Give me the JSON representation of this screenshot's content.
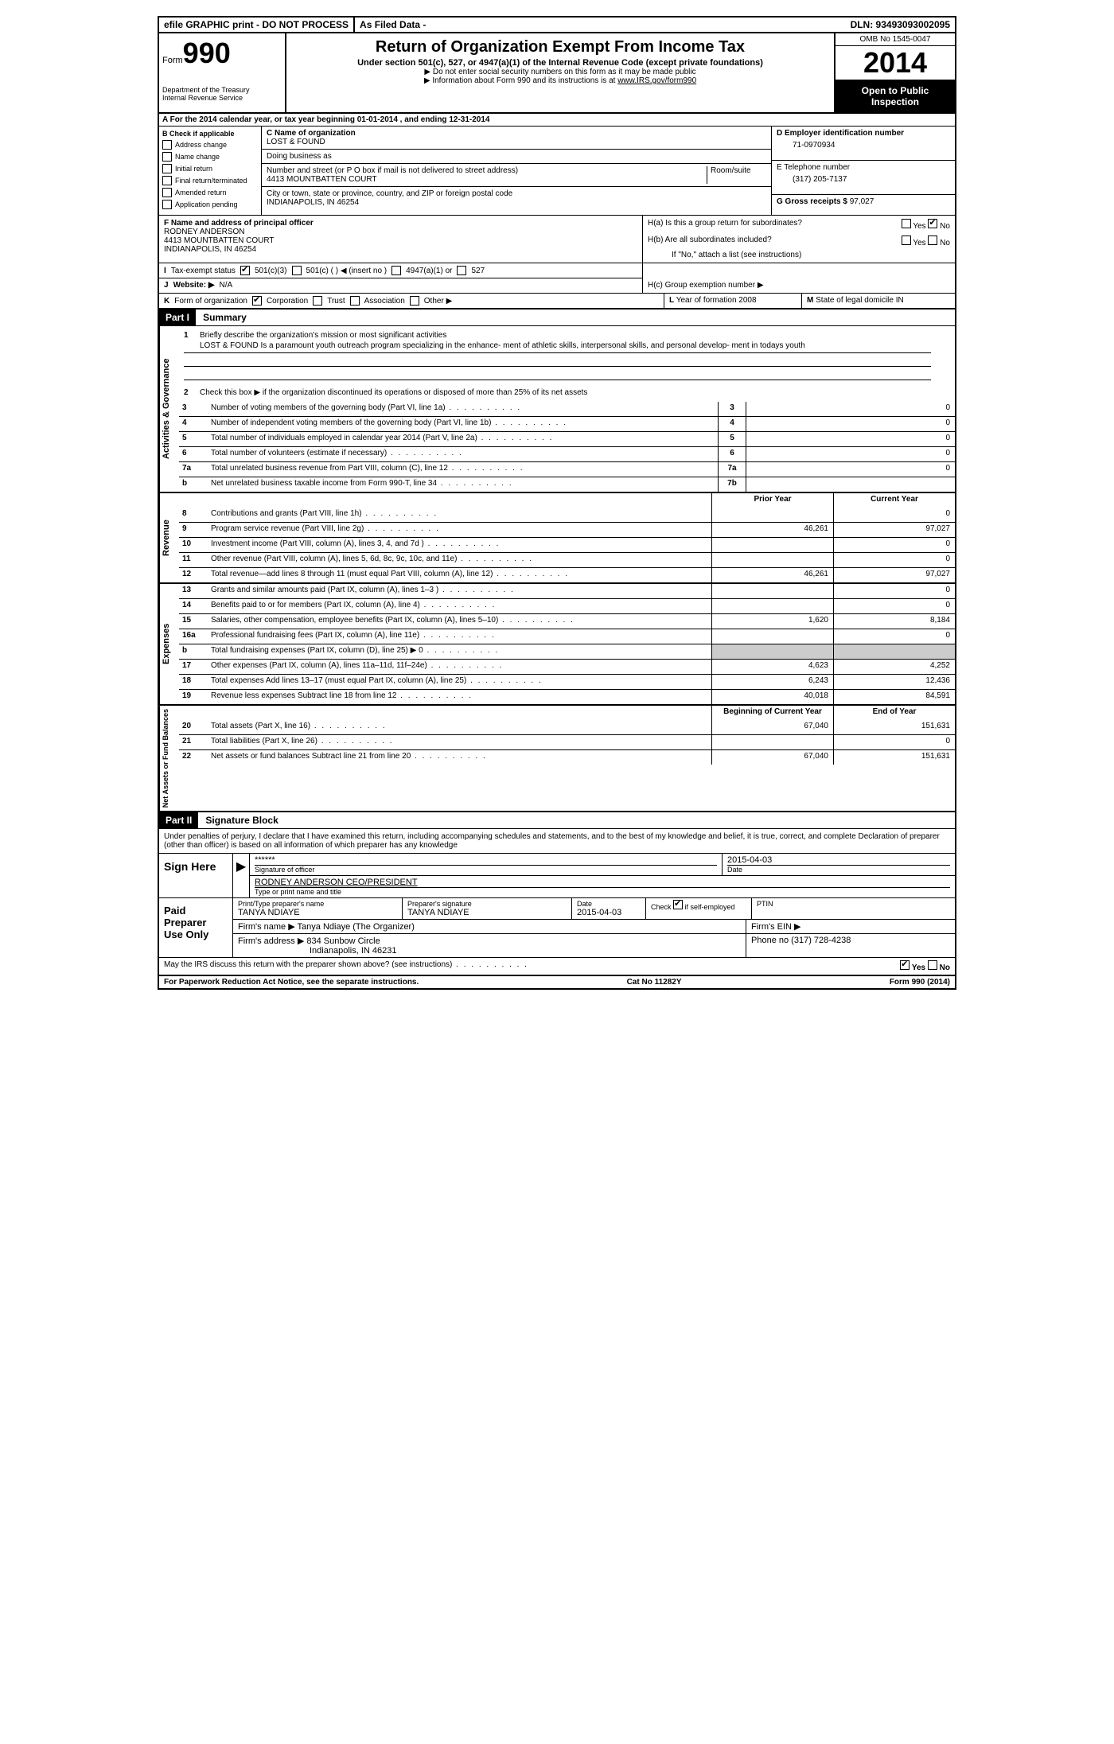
{
  "top": {
    "efile": "efile GRAPHIC print - DO NOT PROCESS",
    "asfiled": "As Filed Data -",
    "dln": "DLN: 93493093002095"
  },
  "header": {
    "form_label": "Form",
    "form_number": "990",
    "dept1": "Department of the Treasury",
    "dept2": "Internal Revenue Service",
    "title": "Return of Organization Exempt From Income Tax",
    "subtitle": "Under section 501(c), 527, or 4947(a)(1) of the Internal Revenue Code (except private foundations)",
    "note1": "▶ Do not enter social security numbers on this form as it may be made public",
    "note2_pre": "▶ Information about Form 990 and its instructions is at ",
    "note2_link": "www.IRS.gov/form990",
    "omb": "OMB No 1545-0047",
    "year": "2014",
    "open1": "Open to Public",
    "open2": "Inspection"
  },
  "row_a": "A For the 2014 calendar year, or tax year beginning 01-01-2014    , and ending 12-31-2014",
  "section_b": {
    "label": "B",
    "check_label": "Check if applicable",
    "opts": [
      "Address change",
      "Name change",
      "Initial return",
      "Final return/terminated",
      "Amended return",
      "Application pending"
    ]
  },
  "section_c": {
    "name_label": "C Name of organization",
    "org_name": "LOST & FOUND",
    "dba_label": "Doing business as",
    "addr_label": "Number and street (or P O  box if mail is not delivered to street address)",
    "room_label": "Room/suite",
    "addr": "4413 MOUNTBATTEN COURT",
    "city_label": "City or town, state or province, country, and ZIP or foreign postal code",
    "city": "INDIANAPOLIS, IN  46254"
  },
  "section_d": {
    "ein_label": "D Employer identification number",
    "ein": "71-0970934",
    "tel_label": "E Telephone number",
    "tel": "(317) 205-7137",
    "gross_label": "G Gross receipts $",
    "gross": "97,027"
  },
  "section_f": {
    "label": "F   Name and address of principal officer",
    "name": "RODNEY ANDERSON",
    "addr1": "4413 MOUNTBATTEN COURT",
    "addr2": "INDIANAPOLIS, IN 46254"
  },
  "section_h": {
    "ha": "H(a)  Is this a group return for subordinates?",
    "hb": "H(b)  Are all subordinates included?",
    "hb_note": "If \"No,\" attach a list  (see instructions)",
    "hc": "H(c)   Group exemption number ▶",
    "yes": "Yes",
    "no": "No"
  },
  "row_i": {
    "label": "I",
    "text": "Tax-exempt status",
    "opt1": "501(c)(3)",
    "opt2": "501(c) (   ) ◀ (insert no )",
    "opt3": "4947(a)(1) or",
    "opt4": "527"
  },
  "row_j": {
    "label": "J",
    "text": "Website: ▶",
    "val": "N/A"
  },
  "row_k": {
    "label": "K",
    "text": "Form of organization",
    "opts": [
      "Corporation",
      "Trust",
      "Association",
      "Other ▶"
    ],
    "l_label": "L",
    "l_text": "Year of formation  2008",
    "m_label": "M",
    "m_text": "State of legal domicile  IN"
  },
  "part1": {
    "label": "Part I",
    "title": "Summary",
    "line1_label": "1",
    "line1_text": "Briefly describe the organization's mission or most significant activities",
    "mission": "LOST & FOUND Is a paramount youth outreach program specializing in the enhance- ment of athletic skills, interpersonal skills, and personal develop- ment in todays youth",
    "line2_label": "2",
    "line2_text": "Check this box ▶       if the organization discontinued its operations or disposed of more than 25% of its net assets",
    "vert1": "Activities & Governance",
    "vert2": "Revenue",
    "vert3": "Expenses",
    "vert4": "Net Assets or Fund Balances",
    "prior_header": "Prior Year",
    "current_header": "Current Year",
    "boy_header": "Beginning of Current Year",
    "eoy_header": "End of Year",
    "rows_gov": [
      {
        "n": "3",
        "d": "Number of voting members of the governing body (Part VI, line 1a)",
        "box": "3",
        "v": "0"
      },
      {
        "n": "4",
        "d": "Number of independent voting members of the governing body (Part VI, line 1b)",
        "box": "4",
        "v": "0"
      },
      {
        "n": "5",
        "d": "Total number of individuals employed in calendar year 2014 (Part V, line 2a)",
        "box": "5",
        "v": "0"
      },
      {
        "n": "6",
        "d": "Total number of volunteers (estimate if necessary)",
        "box": "6",
        "v": "0"
      },
      {
        "n": "7a",
        "d": "Total unrelated business revenue from Part VIII, column (C), line 12",
        "box": "7a",
        "v": "0"
      },
      {
        "n": "b",
        "d": "Net unrelated business taxable income from Form 990-T, line 34",
        "box": "7b",
        "v": ""
      }
    ],
    "rows_rev": [
      {
        "n": "8",
        "d": "Contributions and grants (Part VIII, line 1h)",
        "p": "",
        "c": "0"
      },
      {
        "n": "9",
        "d": "Program service revenue (Part VIII, line 2g)",
        "p": "46,261",
        "c": "97,027"
      },
      {
        "n": "10",
        "d": "Investment income (Part VIII, column (A), lines 3, 4, and 7d )",
        "p": "",
        "c": "0"
      },
      {
        "n": "11",
        "d": "Other revenue (Part VIII, column (A), lines 5, 6d, 8c, 9c, 10c, and 11e)",
        "p": "",
        "c": "0"
      },
      {
        "n": "12",
        "d": "Total revenue—add lines 8 through 11 (must equal Part VIII, column (A), line 12)",
        "p": "46,261",
        "c": "97,027"
      }
    ],
    "rows_exp": [
      {
        "n": "13",
        "d": "Grants and similar amounts paid (Part IX, column (A), lines 1–3 )",
        "p": "",
        "c": "0"
      },
      {
        "n": "14",
        "d": "Benefits paid to or for members (Part IX, column (A), line 4)",
        "p": "",
        "c": "0"
      },
      {
        "n": "15",
        "d": "Salaries, other compensation, employee benefits (Part IX, column (A), lines 5–10)",
        "p": "1,620",
        "c": "8,184"
      },
      {
        "n": "16a",
        "d": "Professional fundraising fees (Part IX, column (A), line 11e)",
        "p": "",
        "c": "0"
      },
      {
        "n": "b",
        "d": "Total fundraising expenses (Part IX, column (D), line 25) ▶ 0",
        "p": "",
        "c": "",
        "gray": true
      },
      {
        "n": "17",
        "d": "Other expenses (Part IX, column (A), lines 11a–11d, 11f–24e)",
        "p": "4,623",
        "c": "4,252"
      },
      {
        "n": "18",
        "d": "Total expenses  Add lines 13–17 (must equal Part IX, column (A), line 25)",
        "p": "6,243",
        "c": "12,436"
      },
      {
        "n": "19",
        "d": "Revenue less expenses  Subtract line 18 from line 12",
        "p": "40,018",
        "c": "84,591"
      }
    ],
    "rows_net": [
      {
        "n": "20",
        "d": "Total assets (Part X, line 16)",
        "p": "67,040",
        "c": "151,631"
      },
      {
        "n": "21",
        "d": "Total liabilities (Part X, line 26)",
        "p": "",
        "c": "0"
      },
      {
        "n": "22",
        "d": "Net assets or fund balances  Subtract line 21 from line 20",
        "p": "67,040",
        "c": "151,631"
      }
    ]
  },
  "part2": {
    "label": "Part II",
    "title": "Signature Block",
    "penalty": "Under penalties of perjury, I declare that I have examined this return, including accompanying schedules and statements, and to the best of my knowledge and belief, it is true, correct, and complete  Declaration of preparer (other than officer) is based on all information of which preparer has any knowledge",
    "sign_here": "Sign Here",
    "stars": "******",
    "sig_officer": "Signature of officer",
    "date": "Date",
    "date_val": "2015-04-03",
    "officer_name": "RODNEY ANDERSON CEO/PRESIDENT",
    "type_name": "Type or print name and title",
    "paid": "Paid Preparer Use Only",
    "prep_name_label": "Print/Type preparer's name",
    "prep_name": "TANYA NDIAYE",
    "prep_sig_label": "Preparer's signature",
    "prep_sig": "TANYA NDIAYE",
    "prep_date": "2015-04-03",
    "check_self": "Check         if self-employed",
    "ptin": "PTIN",
    "firm_name_label": "Firm's name     ▶",
    "firm_name": "Tanya Ndiaye (The Organizer)",
    "firm_ein": "Firm's EIN ▶",
    "firm_addr_label": "Firm's address ▶",
    "firm_addr1": "834 Sunbow Circle",
    "firm_addr2": "Indianapolis, IN  46231",
    "phone_label": "Phone no",
    "phone": "(317) 728-4238",
    "discuss": "May the IRS discuss this return with the preparer shown above? (see instructions)",
    "yes": "Yes",
    "no": "No"
  },
  "footer": {
    "left": "For Paperwork Reduction Act Notice, see the separate instructions.",
    "center": "Cat No 11282Y",
    "right": "Form 990 (2014)"
  }
}
